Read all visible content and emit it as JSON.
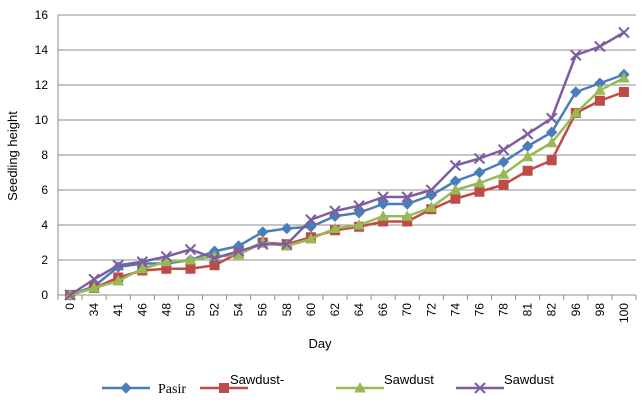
{
  "chart_data": {
    "type": "line",
    "xlabel": "Day",
    "ylabel": "Seedling height",
    "ylim": [
      0,
      16
    ],
    "yticks": [
      0,
      2,
      4,
      6,
      8,
      10,
      12,
      14,
      16
    ],
    "grid": "horizontal",
    "legend_placement": "bottom",
    "categories": [
      "0",
      "34",
      "41",
      "46",
      "48",
      "50",
      "52",
      "54",
      "56",
      "58",
      "60",
      "62",
      "64",
      "66",
      "70",
      "72",
      "74",
      "76",
      "78",
      "81",
      "82",
      "96",
      "98",
      "100"
    ],
    "series": [
      {
        "name": "Pasir",
        "color": "#4a7ebb",
        "marker": "diamond",
        "values": [
          0,
          0.5,
          1.6,
          1.8,
          1.8,
          2.0,
          2.5,
          2.8,
          3.6,
          3.8,
          3.9,
          4.5,
          4.7,
          5.2,
          5.2,
          5.7,
          6.5,
          7.0,
          7.6,
          8.5,
          9.3,
          11.6,
          12.1,
          12.6
        ]
      },
      {
        "name": "Sawdust-",
        "color": "#be4b48",
        "marker": "square",
        "values": [
          0,
          0.4,
          1.0,
          1.4,
          1.5,
          1.5,
          1.7,
          2.4,
          3.0,
          2.9,
          3.3,
          3.7,
          3.9,
          4.2,
          4.2,
          4.9,
          5.5,
          5.9,
          6.3,
          7.1,
          7.7,
          10.4,
          11.1,
          11.6
        ]
      },
      {
        "name": "Sawdust",
        "color": "#98b954",
        "marker": "triangle",
        "values": [
          0,
          0.4,
          0.8,
          1.5,
          1.9,
          2.0,
          2.2,
          2.3,
          3.0,
          2.8,
          3.2,
          3.8,
          4.0,
          4.5,
          4.5,
          5.0,
          6.0,
          6.4,
          6.9,
          7.9,
          8.7,
          10.4,
          11.7,
          12.4
        ]
      },
      {
        "name": "Sawdust",
        "color": "#7d5fa0",
        "marker": "x",
        "values": [
          0,
          0.9,
          1.7,
          1.9,
          2.2,
          2.6,
          2.1,
          2.5,
          2.9,
          2.9,
          4.3,
          4.8,
          5.1,
          5.6,
          5.6,
          6.0,
          7.4,
          7.8,
          8.3,
          9.2,
          10.1,
          13.7,
          14.2,
          15.0
        ]
      }
    ]
  }
}
